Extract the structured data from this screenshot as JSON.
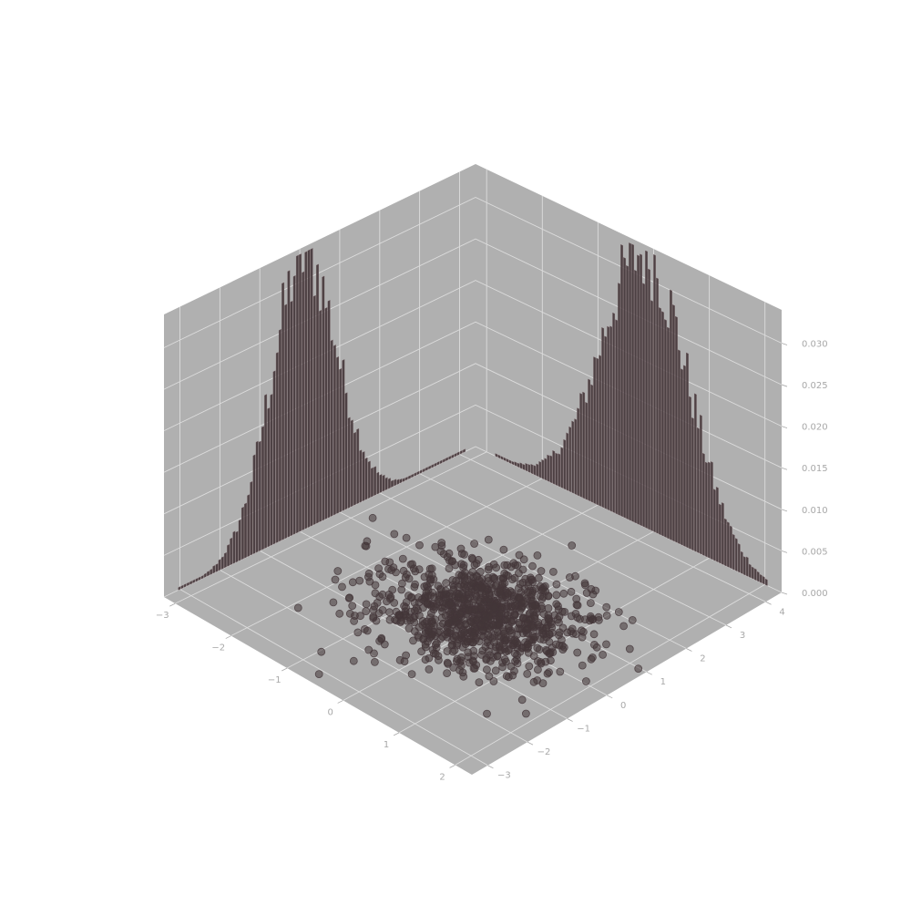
{
  "figure": {
    "background": "#ffffff",
    "pane_color": "#b0b0b0",
    "grid_color": "#dcdcdc",
    "tick_label_color": "#a8a8a8"
  },
  "chart_data": {
    "type": "3d-scatter-with-marginal-histograms",
    "title": "",
    "xlabel": "",
    "ylabel": "",
    "zlabel": "",
    "grid": true,
    "color": "#433639",
    "axes": {
      "x": {
        "ticks": [
          -3,
          -2,
          -1,
          0,
          1,
          2
        ],
        "tick_labels": [
          "−3",
          "−2",
          "−1",
          "0",
          "1",
          "2"
        ],
        "lim": [
          -3.2,
          2.3
        ]
      },
      "y": {
        "ticks": [
          -3,
          -2,
          -1,
          0,
          1,
          2,
          3,
          4
        ],
        "tick_labels": [
          "−3",
          "−2",
          "−1",
          "0",
          "1",
          "2",
          "3",
          "4"
        ],
        "lim": [
          -3.4,
          4.4
        ]
      },
      "z": {
        "ticks": [
          0,
          0.005,
          0.01,
          0.015,
          0.02,
          0.025,
          0.03
        ],
        "tick_labels": [
          "0.000",
          "0.005",
          "0.010",
          "0.015",
          "0.020",
          "0.025",
          "0.030"
        ],
        "lim": [
          0,
          0.034
        ]
      }
    },
    "scatter": {
      "description": "2D standard normal sample plotted on the z=0 plane",
      "n_points": 1000,
      "mean": [
        0,
        0
      ],
      "std": [
        1,
        1
      ]
    },
    "histograms": [
      {
        "name": "x marginal",
        "plane": "back wall (y = ymax)",
        "bins": 100,
        "peak_density": 0.034,
        "center": -0.15,
        "spread": 0.78
      },
      {
        "name": "y marginal",
        "plane": "back wall (x = xmax)",
        "bins": 100,
        "peak_density": 0.034,
        "center": 0.1,
        "spread": 0.82
      }
    ]
  }
}
